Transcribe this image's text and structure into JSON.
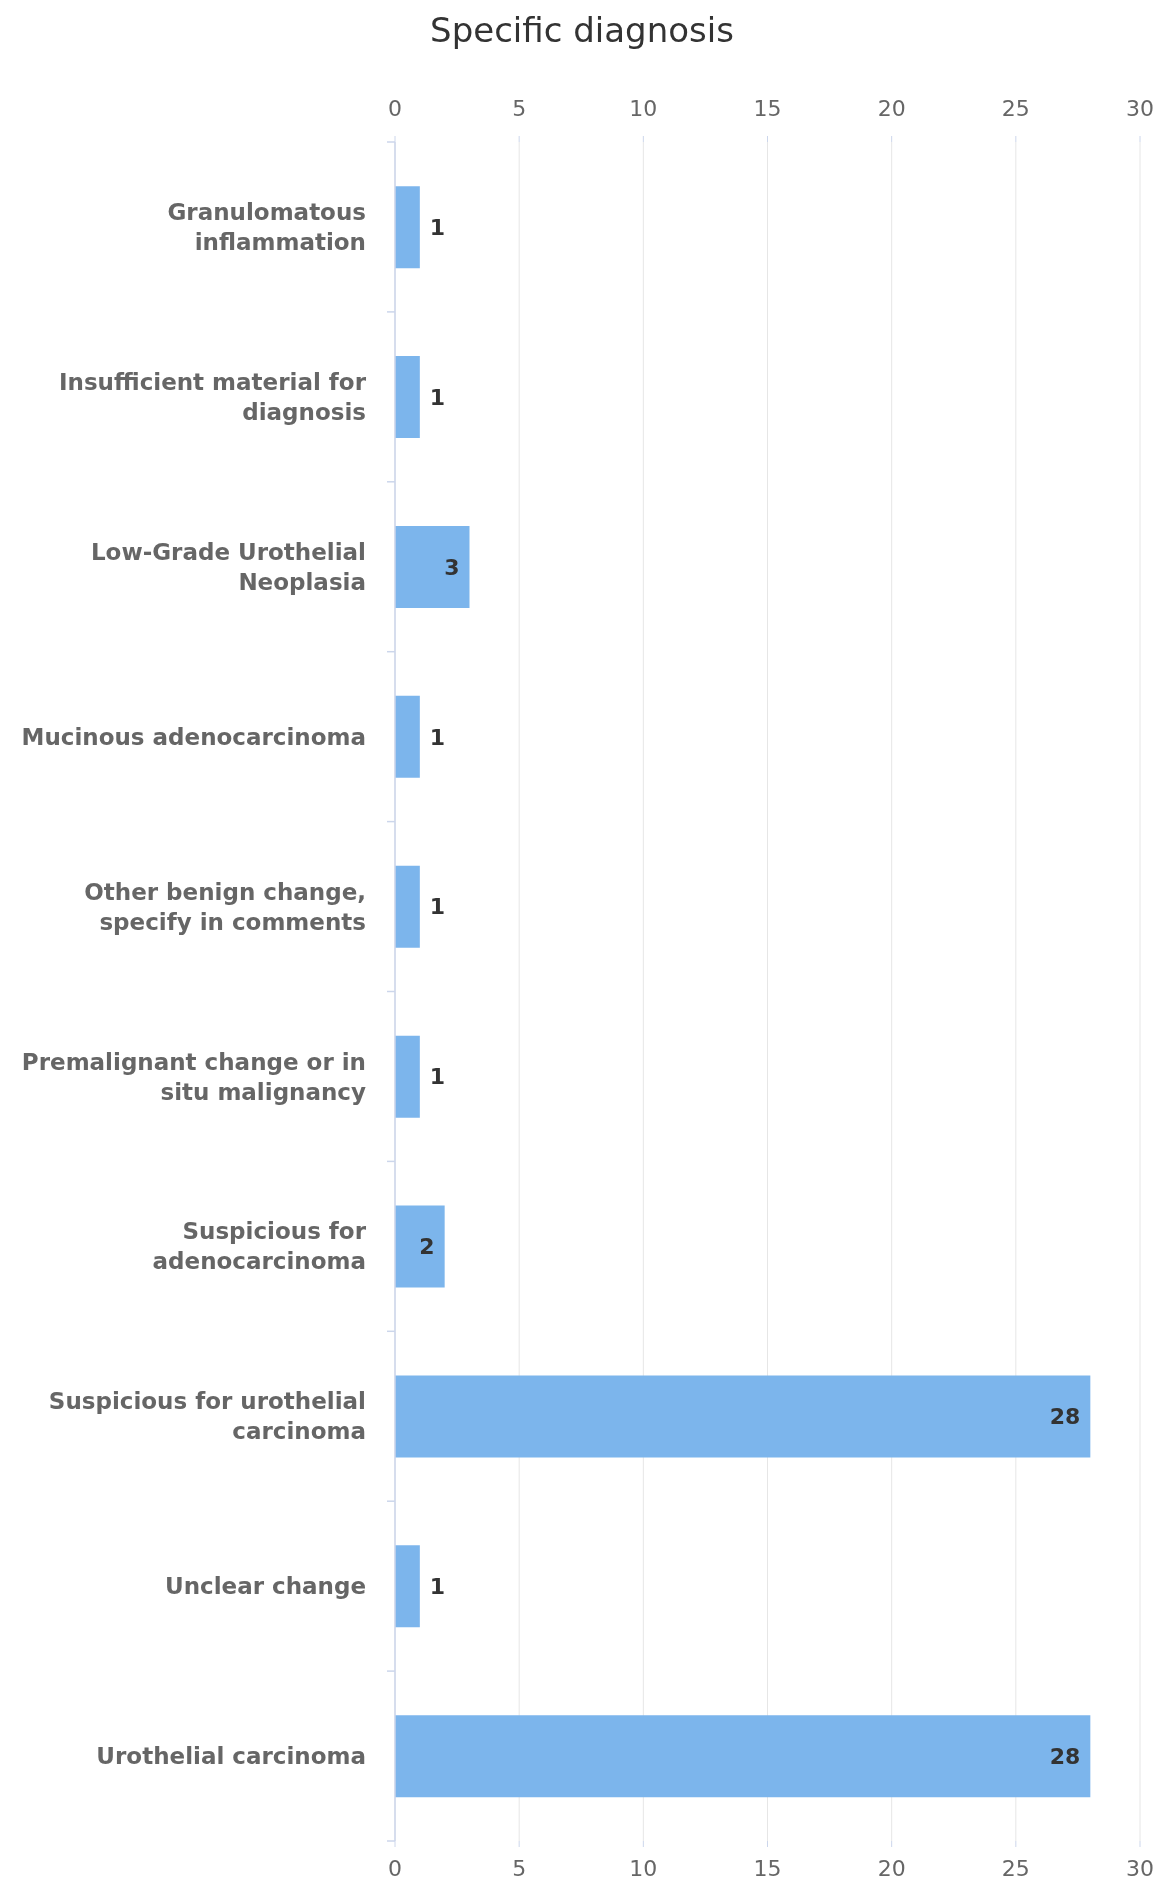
{
  "chart_data": {
    "type": "bar",
    "orientation": "horizontal",
    "title": "Specific diagnosis",
    "categories": [
      "Granulomatous inflammation",
      "Insufficient material for diagnosis",
      "Low-Grade Urothelial Neoplasia",
      "Mucinous adenocarcinoma",
      "Other benign change, specify in comments",
      "Premalignant change or in situ malignancy",
      "Suspicious for adenocarcinoma",
      "Suspicious for urothelial carcinoma",
      "Unclear change",
      "Urothelial carcinoma"
    ],
    "values": [
      1,
      1,
      3,
      1,
      1,
      1,
      2,
      28,
      1,
      28
    ],
    "color": "#7cb5ec",
    "xlim": [
      0,
      30
    ],
    "xticks": [
      0,
      5,
      10,
      15,
      20,
      25,
      30
    ],
    "x2lim": [
      0,
      30
    ],
    "x2ticks": [
      0,
      5,
      10,
      15,
      20,
      25,
      30
    ],
    "grid": "x",
    "data_labels": true
  }
}
